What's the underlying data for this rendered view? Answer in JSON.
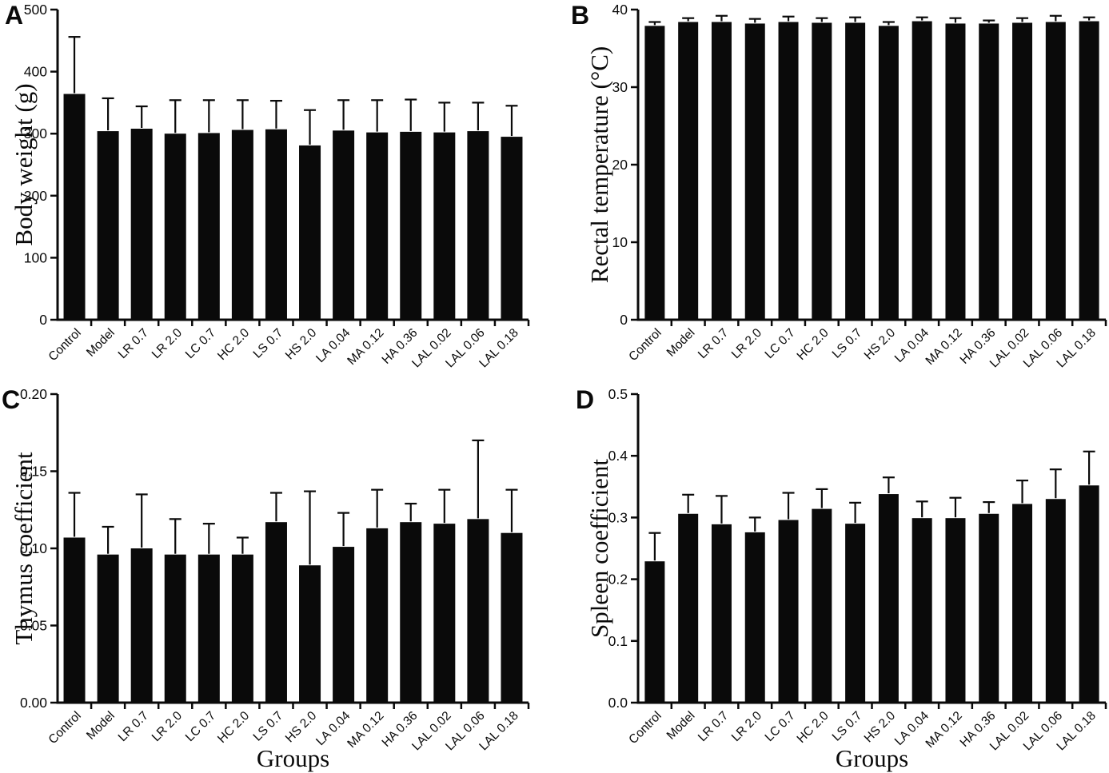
{
  "figure": {
    "description": "Four-panel bar chart figure with mean + SD error bars",
    "panel_letters": [
      "A",
      "B",
      "C",
      "D"
    ],
    "bar_color": "#0a0a0a",
    "axis_color": "#0a0a0a",
    "background_color": "#ffffff"
  },
  "chart_data": [
    {
      "type": "bar",
      "panel": "A",
      "title": "",
      "xlabel": "",
      "ylabel": "Body weight (g)",
      "ylim": [
        0,
        500
      ],
      "ytick_labels": [
        "0",
        "100",
        "200",
        "300",
        "400",
        "500"
      ],
      "grid": "off",
      "legend": "none",
      "error_bars": "upper only",
      "categories": [
        "Control",
        "Model",
        "LR 0.7",
        "LR 2.0",
        "LC 0.7",
        "HC 2.0",
        "LS 0.7",
        "HS 2.0",
        "LA 0.04",
        "MA 0.12",
        "HA 0.36",
        "LAL 0.02",
        "LAL 0.06",
        "LAL 0.18"
      ],
      "values": [
        364,
        304,
        308,
        300,
        301,
        306,
        307,
        281,
        305,
        302,
        303,
        302,
        304,
        295
      ],
      "errors": [
        92,
        53,
        36,
        54,
        53,
        48,
        46,
        57,
        49,
        52,
        52,
        48,
        46,
        50
      ]
    },
    {
      "type": "bar",
      "panel": "B",
      "title": "",
      "xlabel": "",
      "ylabel": "Rectal temperature (°C)",
      "ylim": [
        0,
        40
      ],
      "ytick_labels": [
        "0",
        "10",
        "20",
        "30",
        "40"
      ],
      "grid": "off",
      "legend": "none",
      "error_bars": "upper only",
      "categories": [
        "Control",
        "Model",
        "LR 0.7",
        "LR 2.0",
        "LC 0.7",
        "HC 2.0",
        "LS 0.7",
        "HS 2.0",
        "LA 0.04",
        "MA 0.12",
        "HA 0.36",
        "LAL 0.02",
        "LAL 0.06",
        "LAL 0.18"
      ],
      "values": [
        37.9,
        38.4,
        38.4,
        38.2,
        38.4,
        38.3,
        38.3,
        37.9,
        38.5,
        38.2,
        38.2,
        38.3,
        38.4,
        38.5
      ],
      "errors": [
        0.5,
        0.5,
        0.8,
        0.6,
        0.7,
        0.6,
        0.7,
        0.5,
        0.5,
        0.7,
        0.4,
        0.6,
        0.8,
        0.5
      ]
    },
    {
      "type": "bar",
      "panel": "C",
      "title": "",
      "xlabel": "Groups",
      "ylabel": "Thymus coefficient",
      "ylim": [
        0,
        0.2
      ],
      "ytick_labels": [
        "0.00",
        "0.05",
        "0.10",
        "0.15",
        "0.20"
      ],
      "grid": "off",
      "legend": "none",
      "error_bars": "upper only",
      "categories": [
        "Control",
        "Model",
        "LR 0.7",
        "LR 2.0",
        "LC 0.7",
        "HC 2.0",
        "LS 0.7",
        "HS 2.0",
        "LA 0.04",
        "MA 0.12",
        "HA 0.36",
        "LAL 0.02",
        "LAL 0.06",
        "LAL 0.18"
      ],
      "values": [
        0.107,
        0.096,
        0.1,
        0.096,
        0.096,
        0.096,
        0.117,
        0.089,
        0.101,
        0.113,
        0.117,
        0.116,
        0.119,
        0.11
      ],
      "errors": [
        0.029,
        0.018,
        0.035,
        0.023,
        0.02,
        0.011,
        0.019,
        0.048,
        0.022,
        0.025,
        0.012,
        0.022,
        0.051,
        0.028
      ]
    },
    {
      "type": "bar",
      "panel": "D",
      "title": "",
      "xlabel": "Groups",
      "ylabel": "Spleen coefficient",
      "ylim": [
        0,
        0.5
      ],
      "ytick_labels": [
        "0.0",
        "0.1",
        "0.2",
        "0.3",
        "0.4",
        "0.5"
      ],
      "grid": "off",
      "legend": "none",
      "error_bars": "upper only",
      "categories": [
        "Control",
        "Model",
        "LR 0.7",
        "LR 2.0",
        "LC 0.7",
        "HC 2.0",
        "LS 0.7",
        "HS 2.0",
        "LA 0.04",
        "MA 0.12",
        "HA 0.36",
        "LAL 0.02",
        "LAL 0.06",
        "LAL 0.18"
      ],
      "values": [
        0.229,
        0.306,
        0.289,
        0.276,
        0.296,
        0.314,
        0.29,
        0.338,
        0.299,
        0.299,
        0.306,
        0.322,
        0.33,
        0.352
      ],
      "errors": [
        0.046,
        0.031,
        0.046,
        0.024,
        0.044,
        0.032,
        0.034,
        0.027,
        0.027,
        0.033,
        0.019,
        0.038,
        0.048,
        0.055
      ]
    }
  ]
}
